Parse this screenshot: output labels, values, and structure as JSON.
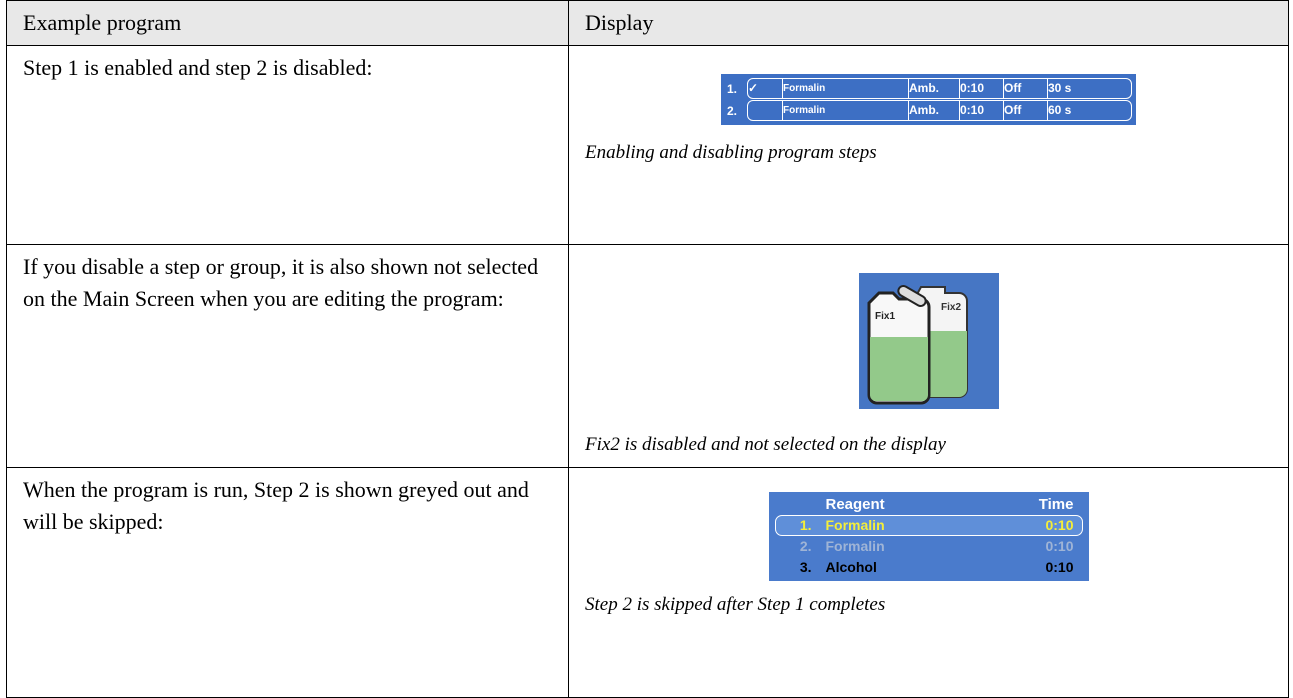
{
  "table": {
    "header": [
      "Example program",
      "Display"
    ],
    "rows": [
      {
        "text": "Step 1 is enabled and step 2 is disabled:",
        "display": {
          "steps": [
            {
              "number": "1.",
              "check": "✓",
              "reagent": "Formalin",
              "temp": "Amb.",
              "time": "0:10",
              "pressure": "Off",
              "drip": "30 s"
            },
            {
              "number": "2.",
              "reagent": "Formalin",
              "temp": "Amb.",
              "time": "0:10",
              "pressure": "Off",
              "drip": "60 s"
            }
          ]
        },
        "caption": "Enabling and disabling program steps"
      },
      {
        "text": "If you disable a step or group, it is also shown not selected on the Main Screen when you are editing the program:",
        "display": {
          "bottles": [
            "Fix1",
            "Fix2"
          ]
        },
        "caption": "Fix2 is disabled and not selected on the display"
      },
      {
        "text": "When the program is run, Step 2 is shown greyed out and will be skipped:",
        "display": {
          "headers": [
            "Reagent",
            "Time"
          ],
          "steps": [
            {
              "number": "1.",
              "reagent": "Formalin",
              "time": "0:10"
            },
            {
              "number": "2.",
              "reagent": "Formalin",
              "time": "0:10"
            },
            {
              "number": "3.",
              "reagent": "Alcohol",
              "time": "0:10"
            }
          ]
        },
        "caption": "Step 2 is skipped after Step 1 completes"
      }
    ]
  }
}
